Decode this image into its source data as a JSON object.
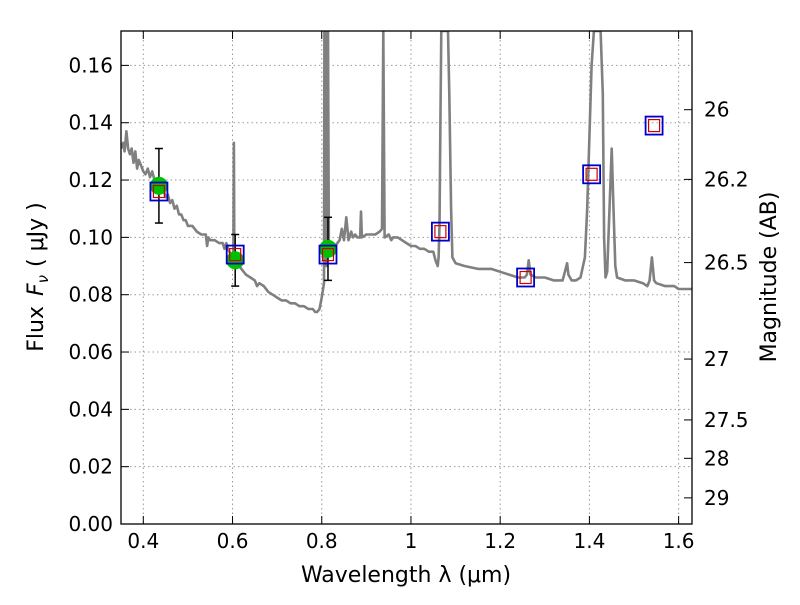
{
  "chart_data": {
    "type": "line",
    "xlabel": "Wavelength  λ (μm)",
    "ylabel_text": "Flux",
    "ylabel_symbol": "F",
    "ylabel_subscript": "ν",
    "ylabel_unit": "( μJy )",
    "y2label": "Magnitude (AB)",
    "xlim": [
      0.35,
      1.63
    ],
    "ylim": [
      0,
      0.172
    ],
    "grid": true,
    "x_ticks": [
      {
        "value": 0.4,
        "label": "0.4"
      },
      {
        "value": 0.6,
        "label": "0.6"
      },
      {
        "value": 0.8,
        "label": "0.8"
      },
      {
        "value": 1.0,
        "label": "1"
      },
      {
        "value": 1.2,
        "label": "1.2"
      },
      {
        "value": 1.4,
        "label": "1.4"
      },
      {
        "value": 1.6,
        "label": "1.6"
      }
    ],
    "y_ticks": [
      {
        "value": 0.0,
        "label": "0.00"
      },
      {
        "value": 0.02,
        "label": "0.02"
      },
      {
        "value": 0.04,
        "label": "0.04"
      },
      {
        "value": 0.06,
        "label": "0.06"
      },
      {
        "value": 0.08,
        "label": "0.08"
      },
      {
        "value": 0.1,
        "label": "0.10"
      },
      {
        "value": 0.12,
        "label": "0.12"
      },
      {
        "value": 0.14,
        "label": "0.14"
      },
      {
        "value": 0.16,
        "label": "0.16"
      }
    ],
    "y2_ticks": [
      {
        "value": 26,
        "label": "26"
      },
      {
        "value": 26.2,
        "label": "26.2"
      },
      {
        "value": 26.5,
        "label": "26.5"
      },
      {
        "value": 27,
        "label": "27"
      },
      {
        "value": 27.5,
        "label": "27.5"
      },
      {
        "value": 28,
        "label": "28"
      },
      {
        "value": 29,
        "label": "29"
      }
    ],
    "colors": {
      "model": "#808080",
      "observed": "#00c000",
      "model_box": "#0000cc",
      "model_inner": "#cc0000",
      "errorbar": "#000000",
      "grid": "#999999"
    },
    "model_spectrum": [
      [
        0.35,
        0.131
      ],
      [
        0.355,
        0.133
      ],
      [
        0.358,
        0.13
      ],
      [
        0.362,
        0.137
      ],
      [
        0.366,
        0.131
      ],
      [
        0.37,
        0.129
      ],
      [
        0.374,
        0.131
      ],
      [
        0.378,
        0.126
      ],
      [
        0.382,
        0.13
      ],
      [
        0.386,
        0.124
      ],
      [
        0.39,
        0.127
      ],
      [
        0.395,
        0.125
      ],
      [
        0.4,
        0.123
      ],
      [
        0.405,
        0.122
      ],
      [
        0.41,
        0.124
      ],
      [
        0.415,
        0.121
      ],
      [
        0.42,
        0.123
      ],
      [
        0.425,
        0.12
      ],
      [
        0.43,
        0.119
      ],
      [
        0.435,
        0.118
      ],
      [
        0.44,
        0.116
      ],
      [
        0.445,
        0.117
      ],
      [
        0.45,
        0.114
      ],
      [
        0.455,
        0.115
      ],
      [
        0.46,
        0.112
      ],
      [
        0.465,
        0.113
      ],
      [
        0.47,
        0.11
      ],
      [
        0.475,
        0.111
      ],
      [
        0.48,
        0.108
      ],
      [
        0.485,
        0.108
      ],
      [
        0.49,
        0.106
      ],
      [
        0.495,
        0.106
      ],
      [
        0.5,
        0.104
      ],
      [
        0.51,
        0.104
      ],
      [
        0.52,
        0.102
      ],
      [
        0.53,
        0.101
      ],
      [
        0.54,
        0.101
      ],
      [
        0.543,
        0.097
      ],
      [
        0.546,
        0.1
      ],
      [
        0.55,
        0.099
      ],
      [
        0.56,
        0.099
      ],
      [
        0.57,
        0.098
      ],
      [
        0.578,
        0.098
      ],
      [
        0.582,
        0.096
      ],
      [
        0.586,
        0.098
      ],
      [
        0.59,
        0.096
      ],
      [
        0.596,
        0.094
      ],
      [
        0.6,
        0.093
      ],
      [
        0.602,
        0.096
      ],
      [
        0.603,
        0.133
      ],
      [
        0.604,
        0.096
      ],
      [
        0.606,
        0.092
      ],
      [
        0.61,
        0.091
      ],
      [
        0.62,
        0.089
      ],
      [
        0.63,
        0.087
      ],
      [
        0.64,
        0.086
      ],
      [
        0.65,
        0.085
      ],
      [
        0.655,
        0.083
      ],
      [
        0.66,
        0.084
      ],
      [
        0.67,
        0.083
      ],
      [
        0.68,
        0.081
      ],
      [
        0.69,
        0.08
      ],
      [
        0.7,
        0.079
      ],
      [
        0.71,
        0.078
      ],
      [
        0.72,
        0.078
      ],
      [
        0.73,
        0.077
      ],
      [
        0.74,
        0.077
      ],
      [
        0.75,
        0.076
      ],
      [
        0.76,
        0.076
      ],
      [
        0.77,
        0.075
      ],
      [
        0.78,
        0.075
      ],
      [
        0.785,
        0.074
      ],
      [
        0.79,
        0.074
      ],
      [
        0.795,
        0.075
      ],
      [
        0.8,
        0.079
      ],
      [
        0.805,
        0.084
      ],
      [
        0.806,
        0.172
      ],
      [
        0.809,
        0.172
      ],
      [
        0.81,
        0.09
      ],
      [
        0.812,
        0.172
      ],
      [
        0.814,
        0.172
      ],
      [
        0.816,
        0.094
      ],
      [
        0.82,
        0.096
      ],
      [
        0.83,
        0.097
      ],
      [
        0.84,
        0.099
      ],
      [
        0.845,
        0.103
      ],
      [
        0.85,
        0.099
      ],
      [
        0.855,
        0.107
      ],
      [
        0.86,
        0.099
      ],
      [
        0.866,
        0.102
      ],
      [
        0.87,
        0.1
      ],
      [
        0.875,
        0.101
      ],
      [
        0.88,
        0.1
      ],
      [
        0.886,
        0.1
      ],
      [
        0.888,
        0.109
      ],
      [
        0.89,
        0.1
      ],
      [
        0.9,
        0.101
      ],
      [
        0.91,
        0.101
      ],
      [
        0.92,
        0.101
      ],
      [
        0.93,
        0.102
      ],
      [
        0.935,
        0.103
      ],
      [
        0.938,
        0.172
      ],
      [
        0.941,
        0.1
      ],
      [
        0.95,
        0.101
      ],
      [
        0.956,
        0.099
      ],
      [
        0.96,
        0.1
      ],
      [
        0.97,
        0.1
      ],
      [
        0.98,
        0.099
      ],
      [
        0.99,
        0.098
      ],
      [
        1.0,
        0.097
      ],
      [
        1.01,
        0.097
      ],
      [
        1.02,
        0.096
      ],
      [
        1.03,
        0.096
      ],
      [
        1.04,
        0.095
      ],
      [
        1.05,
        0.095
      ],
      [
        1.055,
        0.092
      ],
      [
        1.06,
        0.09
      ],
      [
        1.062,
        0.093
      ],
      [
        1.064,
        0.104
      ],
      [
        1.066,
        0.14
      ],
      [
        1.068,
        0.172
      ],
      [
        1.07,
        0.172
      ],
      [
        1.075,
        0.172
      ],
      [
        1.08,
        0.172
      ],
      [
        1.083,
        0.172
      ],
      [
        1.086,
        0.15
      ],
      [
        1.09,
        0.11
      ],
      [
        1.093,
        0.093
      ],
      [
        1.1,
        0.091
      ],
      [
        1.12,
        0.09
      ],
      [
        1.15,
        0.089
      ],
      [
        1.18,
        0.089
      ],
      [
        1.2,
        0.088
      ],
      [
        1.22,
        0.087
      ],
      [
        1.24,
        0.086
      ],
      [
        1.255,
        0.086
      ],
      [
        1.26,
        0.087
      ],
      [
        1.264,
        0.092
      ],
      [
        1.268,
        0.087
      ],
      [
        1.28,
        0.086
      ],
      [
        1.3,
        0.086
      ],
      [
        1.32,
        0.085
      ],
      [
        1.34,
        0.085
      ],
      [
        1.345,
        0.088
      ],
      [
        1.35,
        0.091
      ],
      [
        1.353,
        0.087
      ],
      [
        1.36,
        0.085
      ],
      [
        1.37,
        0.085
      ],
      [
        1.38,
        0.086
      ],
      [
        1.39,
        0.093
      ],
      [
        1.395,
        0.11
      ],
      [
        1.4,
        0.135
      ],
      [
        1.405,
        0.16
      ],
      [
        1.41,
        0.172
      ],
      [
        1.42,
        0.172
      ],
      [
        1.425,
        0.172
      ],
      [
        1.43,
        0.15
      ],
      [
        1.433,
        0.1
      ],
      [
        1.436,
        0.086
      ],
      [
        1.44,
        0.088
      ],
      [
        1.445,
        0.11
      ],
      [
        1.45,
        0.131
      ],
      [
        1.454,
        0.11
      ],
      [
        1.458,
        0.09
      ],
      [
        1.462,
        0.086
      ],
      [
        1.48,
        0.085
      ],
      [
        1.5,
        0.085
      ],
      [
        1.52,
        0.084
      ],
      [
        1.53,
        0.083
      ],
      [
        1.535,
        0.085
      ],
      [
        1.54,
        0.093
      ],
      [
        1.545,
        0.085
      ],
      [
        1.55,
        0.084
      ],
      [
        1.57,
        0.083
      ],
      [
        1.59,
        0.083
      ],
      [
        1.6,
        0.082
      ],
      [
        1.63,
        0.082
      ]
    ],
    "observed_points": [
      {
        "x": 0.435,
        "y": 0.118,
        "yerr": 0.013
      },
      {
        "x": 0.606,
        "y": 0.092,
        "yerr": 0.009
      },
      {
        "x": 0.814,
        "y": 0.096,
        "yerr": 0.011
      }
    ],
    "model_photometry": [
      {
        "x": 0.435,
        "y": 0.116
      },
      {
        "x": 0.606,
        "y": 0.094
      },
      {
        "x": 0.814,
        "y": 0.094
      },
      {
        "x": 1.066,
        "y": 0.102
      },
      {
        "x": 1.257,
        "y": 0.086
      },
      {
        "x": 1.405,
        "y": 0.122
      },
      {
        "x": 1.545,
        "y": 0.139
      }
    ]
  }
}
